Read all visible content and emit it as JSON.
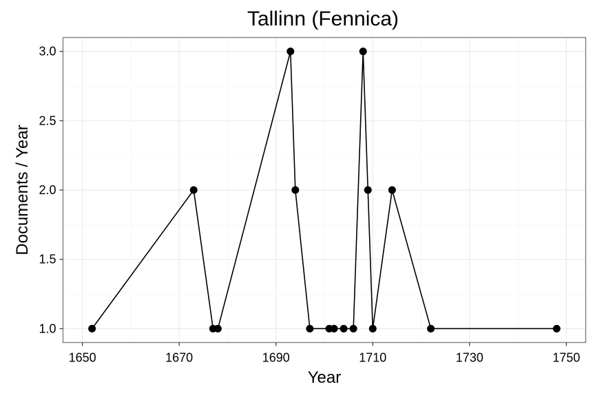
{
  "chart_data": {
    "type": "line",
    "title": "Tallinn (Fennica)",
    "xlabel": "Year",
    "ylabel": "Documents / Year",
    "xlim": [
      1646,
      1754
    ],
    "ylim": [
      0.9,
      3.1
    ],
    "x_ticks": [
      1650,
      1670,
      1690,
      1710,
      1730,
      1750
    ],
    "x_tick_labels": [
      "1650",
      "1670",
      "1690",
      "1710",
      "1730",
      "1750"
    ],
    "y_ticks": [
      1.0,
      1.5,
      2.0,
      2.5,
      3.0
    ],
    "y_tick_labels": [
      "1.0",
      "1.5",
      "2.0",
      "2.5",
      "3.0"
    ],
    "grid": true,
    "legend": "none",
    "series": [
      {
        "x": [
          1652,
          1673,
          1677,
          1678,
          1693,
          1694,
          1697,
          1701,
          1702,
          1704,
          1706,
          1708,
          1709,
          1710,
          1714,
          1722,
          1748
        ],
        "y": [
          1,
          2,
          1,
          1,
          3,
          2,
          1,
          1,
          1,
          1,
          1,
          3,
          2,
          1,
          2,
          1,
          1
        ]
      }
    ]
  }
}
